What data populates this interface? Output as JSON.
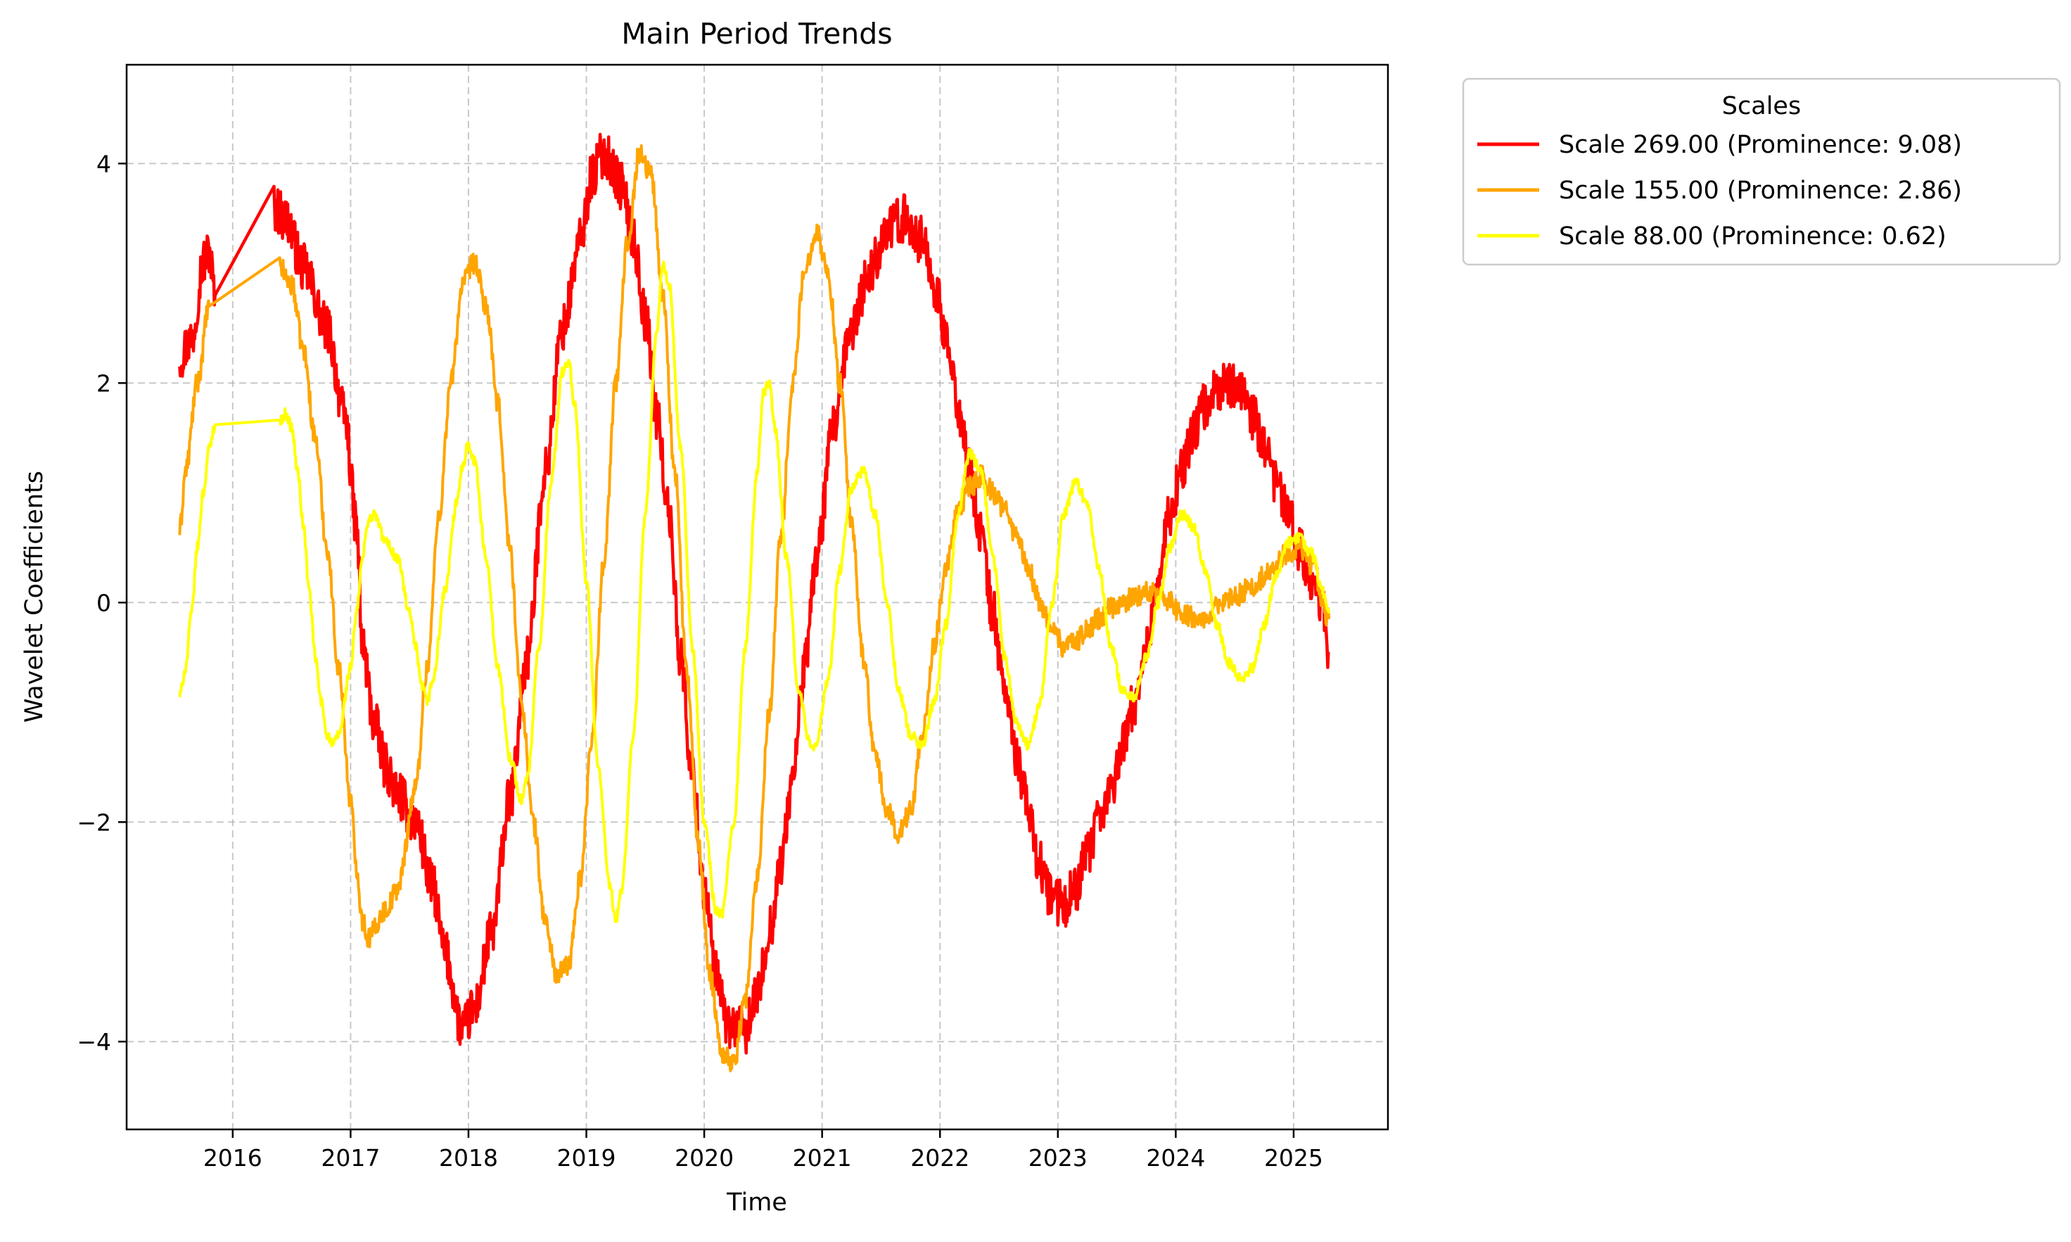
{
  "chart_data": {
    "type": "line",
    "title": "Main Period Trends",
    "xlabel": "Time",
    "ylabel": "Wavelet Coefficients",
    "xlim": [
      2015.1,
      2025.8
    ],
    "ylim": [
      -4.8,
      4.9
    ],
    "x_ticks": [
      2016,
      2017,
      2018,
      2019,
      2020,
      2021,
      2022,
      2023,
      2024,
      2025
    ],
    "x_tick_labels": [
      "2016",
      "2017",
      "2018",
      "2019",
      "2020",
      "2021",
      "2022",
      "2023",
      "2024",
      "2025"
    ],
    "y_ticks": [
      -4,
      -2,
      0,
      2,
      4
    ],
    "y_tick_labels": [
      "−4",
      "−2",
      "0",
      "2",
      "4"
    ],
    "grid": true,
    "legend_title": "Scales",
    "legend_position": "outside-upper-right",
    "series": [
      {
        "name": "Scale 269.00 (Prominence: 9.08)",
        "color": "#ff0000",
        "noise": 0.22,
        "points": [
          [
            2015.55,
            2.25
          ],
          [
            2015.65,
            2.4
          ],
          [
            2015.75,
            3.1
          ],
          [
            2015.8,
            3.2
          ],
          [
            2015.85,
            2.8
          ],
          [
            2016.35,
            3.6
          ],
          [
            2016.45,
            3.5
          ],
          [
            2016.6,
            3.05
          ],
          [
            2016.8,
            2.5
          ],
          [
            2016.95,
            1.7
          ],
          [
            2017.05,
            0.7
          ],
          [
            2017.1,
            -0.4
          ],
          [
            2017.2,
            -1.1
          ],
          [
            2017.3,
            -1.5
          ],
          [
            2017.4,
            -1.75
          ],
          [
            2017.55,
            -2.0
          ],
          [
            2017.7,
            -2.6
          ],
          [
            2017.8,
            -3.2
          ],
          [
            2017.95,
            -3.9
          ],
          [
            2018.05,
            -3.7
          ],
          [
            2018.2,
            -3.0
          ],
          [
            2018.35,
            -1.8
          ],
          [
            2018.5,
            -0.5
          ],
          [
            2018.65,
            1.2
          ],
          [
            2018.8,
            2.5
          ],
          [
            2018.95,
            3.3
          ],
          [
            2019.05,
            3.9
          ],
          [
            2019.15,
            4.1
          ],
          [
            2019.3,
            3.8
          ],
          [
            2019.4,
            3.3
          ],
          [
            2019.5,
            2.6
          ],
          [
            2019.6,
            1.7
          ],
          [
            2019.7,
            0.8
          ],
          [
            2019.8,
            -0.5
          ],
          [
            2019.9,
            -1.6
          ],
          [
            2020.0,
            -2.6
          ],
          [
            2020.1,
            -3.4
          ],
          [
            2020.2,
            -3.85
          ],
          [
            2020.35,
            -3.9
          ],
          [
            2020.45,
            -3.6
          ],
          [
            2020.55,
            -3.0
          ],
          [
            2020.65,
            -2.4
          ],
          [
            2020.75,
            -1.6
          ],
          [
            2020.85,
            -0.6
          ],
          [
            2020.95,
            0.4
          ],
          [
            2021.1,
            1.6
          ],
          [
            2021.25,
            2.5
          ],
          [
            2021.4,
            3.0
          ],
          [
            2021.55,
            3.4
          ],
          [
            2021.7,
            3.5
          ],
          [
            2021.85,
            3.3
          ],
          [
            2021.95,
            2.9
          ],
          [
            2022.05,
            2.4
          ],
          [
            2022.15,
            1.8
          ],
          [
            2022.25,
            1.2
          ],
          [
            2022.35,
            0.6
          ],
          [
            2022.45,
            -0.1
          ],
          [
            2022.55,
            -0.8
          ],
          [
            2022.65,
            -1.4
          ],
          [
            2022.75,
            -1.9
          ],
          [
            2022.85,
            -2.4
          ],
          [
            2022.95,
            -2.7
          ],
          [
            2023.05,
            -2.75
          ],
          [
            2023.15,
            -2.6
          ],
          [
            2023.25,
            -2.3
          ],
          [
            2023.35,
            -2.0
          ],
          [
            2023.45,
            -1.7
          ],
          [
            2023.55,
            -1.3
          ],
          [
            2023.65,
            -0.9
          ],
          [
            2023.75,
            -0.4
          ],
          [
            2023.85,
            0.2
          ],
          [
            2023.95,
            0.8
          ],
          [
            2024.05,
            1.2
          ],
          [
            2024.15,
            1.55
          ],
          [
            2024.25,
            1.8
          ],
          [
            2024.35,
            1.95
          ],
          [
            2024.45,
            2.0
          ],
          [
            2024.55,
            1.9
          ],
          [
            2024.65,
            1.7
          ],
          [
            2024.75,
            1.4
          ],
          [
            2024.85,
            1.1
          ],
          [
            2024.95,
            0.8
          ],
          [
            2025.05,
            0.5
          ],
          [
            2025.15,
            0.25
          ],
          [
            2025.25,
            -0.1
          ],
          [
            2025.3,
            -0.45
          ]
        ]
      },
      {
        "name": "Scale 155.00 (Prominence: 2.86)",
        "color": "#ffa500",
        "noise": 0.1,
        "points": [
          [
            2015.55,
            0.65
          ],
          [
            2015.6,
            1.2
          ],
          [
            2015.7,
            2.0
          ],
          [
            2015.8,
            2.7
          ],
          [
            2016.4,
            3.05
          ],
          [
            2016.5,
            2.9
          ],
          [
            2016.6,
            2.3
          ],
          [
            2016.7,
            1.5
          ],
          [
            2016.8,
            0.5
          ],
          [
            2016.9,
            -0.6
          ],
          [
            2017.0,
            -1.8
          ],
          [
            2017.05,
            -2.4
          ],
          [
            2017.1,
            -2.9
          ],
          [
            2017.15,
            -3.05
          ],
          [
            2017.3,
            -2.8
          ],
          [
            2017.4,
            -2.6
          ],
          [
            2017.55,
            -1.7
          ],
          [
            2017.65,
            -0.6
          ],
          [
            2017.75,
            0.8
          ],
          [
            2017.85,
            2.0
          ],
          [
            2017.95,
            2.9
          ],
          [
            2018.05,
            3.1
          ],
          [
            2018.15,
            2.7
          ],
          [
            2018.25,
            1.8
          ],
          [
            2018.35,
            0.5
          ],
          [
            2018.45,
            -0.9
          ],
          [
            2018.55,
            -2.0
          ],
          [
            2018.65,
            -2.9
          ],
          [
            2018.75,
            -3.4
          ],
          [
            2018.85,
            -3.3
          ],
          [
            2018.95,
            -2.5
          ],
          [
            2019.05,
            -1.2
          ],
          [
            2019.15,
            0.4
          ],
          [
            2019.25,
            2.0
          ],
          [
            2019.35,
            3.3
          ],
          [
            2019.45,
            4.1
          ],
          [
            2019.55,
            3.9
          ],
          [
            2019.65,
            2.8
          ],
          [
            2019.75,
            1.2
          ],
          [
            2019.85,
            -0.6
          ],
          [
            2019.95,
            -2.2
          ],
          [
            2020.05,
            -3.4
          ],
          [
            2020.15,
            -4.1
          ],
          [
            2020.25,
            -4.2
          ],
          [
            2020.35,
            -3.6
          ],
          [
            2020.45,
            -2.5
          ],
          [
            2020.55,
            -1.0
          ],
          [
            2020.65,
            0.6
          ],
          [
            2020.75,
            2.0
          ],
          [
            2020.85,
            3.0
          ],
          [
            2020.95,
            3.4
          ],
          [
            2021.05,
            3.0
          ],
          [
            2021.15,
            2.0
          ],
          [
            2021.25,
            0.7
          ],
          [
            2021.35,
            -0.5
          ],
          [
            2021.45,
            -1.4
          ],
          [
            2021.55,
            -1.9
          ],
          [
            2021.65,
            -2.1
          ],
          [
            2021.75,
            -1.9
          ],
          [
            2021.85,
            -1.2
          ],
          [
            2021.95,
            -0.4
          ],
          [
            2022.05,
            0.3
          ],
          [
            2022.15,
            0.8
          ],
          [
            2022.25,
            1.05
          ],
          [
            2022.35,
            1.15
          ],
          [
            2022.45,
            1.0
          ],
          [
            2022.55,
            0.85
          ],
          [
            2022.65,
            0.6
          ],
          [
            2022.75,
            0.3
          ],
          [
            2022.85,
            0.0
          ],
          [
            2022.95,
            -0.25
          ],
          [
            2023.05,
            -0.4
          ],
          [
            2023.15,
            -0.35
          ],
          [
            2023.25,
            -0.25
          ],
          [
            2023.35,
            -0.15
          ],
          [
            2023.45,
            -0.05
          ],
          [
            2023.55,
            0.0
          ],
          [
            2023.65,
            0.05
          ],
          [
            2023.75,
            0.1
          ],
          [
            2023.85,
            0.1
          ],
          [
            2023.95,
            0.0
          ],
          [
            2024.05,
            -0.1
          ],
          [
            2024.2,
            -0.15
          ],
          [
            2024.35,
            -0.05
          ],
          [
            2024.5,
            0.05
          ],
          [
            2024.65,
            0.15
          ],
          [
            2024.8,
            0.3
          ],
          [
            2024.95,
            0.45
          ],
          [
            2025.05,
            0.5
          ],
          [
            2025.15,
            0.35
          ],
          [
            2025.3,
            -0.15
          ]
        ]
      },
      {
        "name": "Scale 88.00 (Prominence: 0.62)",
        "color": "#ffff00",
        "noise": 0.05,
        "points": [
          [
            2015.55,
            -0.85
          ],
          [
            2015.6,
            -0.6
          ],
          [
            2015.65,
            -0.1
          ],
          [
            2015.7,
            0.5
          ],
          [
            2015.75,
            1.0
          ],
          [
            2015.8,
            1.4
          ],
          [
            2015.85,
            1.62
          ],
          [
            2016.4,
            1.65
          ],
          [
            2016.45,
            1.72
          ],
          [
            2016.5,
            1.6
          ],
          [
            2016.55,
            1.2
          ],
          [
            2016.6,
            0.7
          ],
          [
            2016.65,
            0.1
          ],
          [
            2016.7,
            -0.5
          ],
          [
            2016.75,
            -0.9
          ],
          [
            2016.8,
            -1.2
          ],
          [
            2016.85,
            -1.3
          ],
          [
            2016.9,
            -1.2
          ],
          [
            2017.0,
            -0.6
          ],
          [
            2017.05,
            -0.1
          ],
          [
            2017.1,
            0.4
          ],
          [
            2017.15,
            0.75
          ],
          [
            2017.2,
            0.8
          ],
          [
            2017.3,
            0.55
          ],
          [
            2017.4,
            0.4
          ],
          [
            2017.5,
            -0.1
          ],
          [
            2017.55,
            -0.4
          ],
          [
            2017.6,
            -0.75
          ],
          [
            2017.65,
            -0.9
          ],
          [
            2017.7,
            -0.7
          ],
          [
            2017.8,
            0.1
          ],
          [
            2017.9,
            0.9
          ],
          [
            2017.95,
            1.25
          ],
          [
            2018.0,
            1.45
          ],
          [
            2018.05,
            1.3
          ],
          [
            2018.15,
            0.4
          ],
          [
            2018.25,
            -0.6
          ],
          [
            2018.35,
            -1.4
          ],
          [
            2018.45,
            -1.8
          ],
          [
            2018.5,
            -1.6
          ],
          [
            2018.6,
            -0.4
          ],
          [
            2018.7,
            1.1
          ],
          [
            2018.8,
            2.1
          ],
          [
            2018.85,
            2.2
          ],
          [
            2018.9,
            1.8
          ],
          [
            2019.0,
            0.2
          ],
          [
            2019.1,
            -1.5
          ],
          [
            2019.2,
            -2.6
          ],
          [
            2019.25,
            -2.9
          ],
          [
            2019.3,
            -2.6
          ],
          [
            2019.4,
            -1.2
          ],
          [
            2019.5,
            0.8
          ],
          [
            2019.6,
            2.5
          ],
          [
            2019.65,
            3.1
          ],
          [
            2019.7,
            2.9
          ],
          [
            2019.8,
            1.4
          ],
          [
            2019.9,
            -0.4
          ],
          [
            2020.0,
            -2.0
          ],
          [
            2020.1,
            -2.8
          ],
          [
            2020.15,
            -2.85
          ],
          [
            2020.25,
            -2.0
          ],
          [
            2020.35,
            -0.4
          ],
          [
            2020.45,
            1.2
          ],
          [
            2020.5,
            1.9
          ],
          [
            2020.55,
            2.0
          ],
          [
            2020.6,
            1.6
          ],
          [
            2020.7,
            0.4
          ],
          [
            2020.8,
            -0.8
          ],
          [
            2020.9,
            -1.3
          ],
          [
            2020.95,
            -1.3
          ],
          [
            2021.05,
            -0.7
          ],
          [
            2021.15,
            0.3
          ],
          [
            2021.25,
            1.05
          ],
          [
            2021.35,
            1.2
          ],
          [
            2021.45,
            0.8
          ],
          [
            2021.55,
            0.0
          ],
          [
            2021.65,
            -0.8
          ],
          [
            2021.75,
            -1.2
          ],
          [
            2021.85,
            -1.3
          ],
          [
            2021.95,
            -0.9
          ],
          [
            2022.05,
            -0.2
          ],
          [
            2022.15,
            0.8
          ],
          [
            2022.25,
            1.35
          ],
          [
            2022.35,
            1.2
          ],
          [
            2022.45,
            0.4
          ],
          [
            2022.55,
            -0.5
          ],
          [
            2022.65,
            -1.1
          ],
          [
            2022.75,
            -1.3
          ],
          [
            2022.85,
            -0.9
          ],
          [
            2022.95,
            0.0
          ],
          [
            2023.05,
            0.8
          ],
          [
            2023.15,
            1.1
          ],
          [
            2023.25,
            0.9
          ],
          [
            2023.35,
            0.3
          ],
          [
            2023.45,
            -0.4
          ],
          [
            2023.55,
            -0.8
          ],
          [
            2023.65,
            -0.85
          ],
          [
            2023.75,
            -0.5
          ],
          [
            2023.85,
            0.0
          ],
          [
            2023.95,
            0.5
          ],
          [
            2024.05,
            0.8
          ],
          [
            2024.15,
            0.7
          ],
          [
            2024.25,
            0.3
          ],
          [
            2024.35,
            -0.2
          ],
          [
            2024.45,
            -0.55
          ],
          [
            2024.55,
            -0.7
          ],
          [
            2024.65,
            -0.6
          ],
          [
            2024.75,
            -0.2
          ],
          [
            2024.85,
            0.25
          ],
          [
            2024.95,
            0.55
          ],
          [
            2025.05,
            0.6
          ],
          [
            2025.15,
            0.45
          ],
          [
            2025.25,
            0.1
          ],
          [
            2025.3,
            -0.1
          ]
        ]
      }
    ]
  }
}
